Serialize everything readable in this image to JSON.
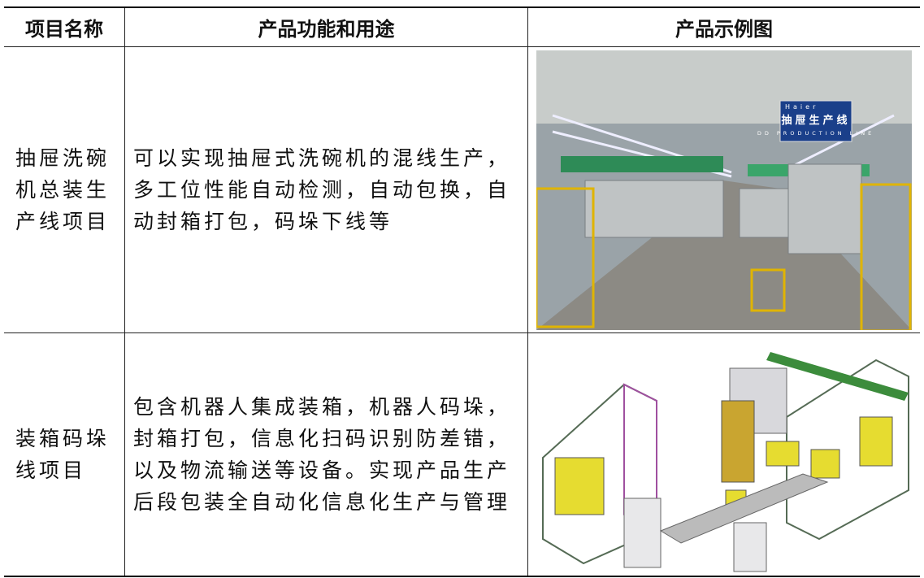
{
  "table": {
    "header": [
      "项目名称",
      "产品功能和用途",
      "产品示例图"
    ],
    "rows": [
      [
        "抽屉洗碗机总装生产线项目",
        "可以实现抽屉式洗碗机的混线生产，多工位性能自动检测，自动包换，自动封箱打包，码垛下线等"
      ],
      [
        "装箱码垛线项目",
        "包含机器人集成装箱，机器人码垛，封箱打包，信息化扫码识别防差错，以及物流输送等设备。实现产品生产后段包装全自动化信息化生产与管理"
      ]
    ]
  },
  "photo_sign": {
    "brand": "Haier",
    "title": "抽屉生产线",
    "subtitle": "DD PRODUCTION LINE"
  }
}
